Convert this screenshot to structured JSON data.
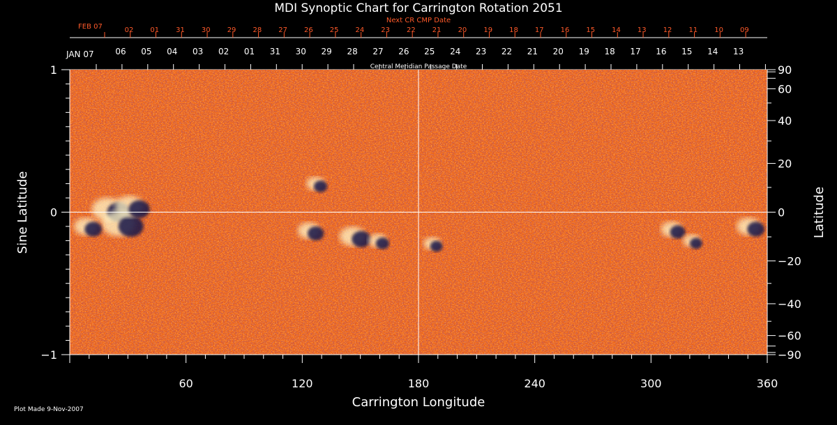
{
  "chart_data": {
    "type": "heatmap",
    "title": "MDI Synoptic Chart for Carrington Rotation 2051",
    "xlabel": "Carrington Longitude",
    "ylabel_left": "Sine Latitude",
    "ylabel_right": "Latitude",
    "xlim": [
      0,
      360
    ],
    "ylim": [
      -1,
      1
    ],
    "x_ticks": [
      60,
      120,
      180,
      240,
      300,
      360
    ],
    "y_left_ticks": [
      {
        "value": -1,
        "label": "−1"
      },
      {
        "value": 0,
        "label": "0"
      },
      {
        "value": 1,
        "label": "1"
      }
    ],
    "y_right_ticks": [
      90,
      60,
      40,
      20,
      0,
      -20,
      -40,
      -60,
      -90
    ],
    "y_right_labels": [
      "90",
      "60",
      "40",
      "20",
      "0",
      "−20",
      "−40",
      "−60",
      "−90"
    ],
    "crosshair": {
      "longitude": 180,
      "sine_latitude": 0
    },
    "color_scale": {
      "background": "#ef6418",
      "positive": "#fff6c8",
      "negative": "#14124a"
    },
    "active_regions": [
      {
        "longitude": 22,
        "sine_latitude": 0.02,
        "strength": 0.9
      },
      {
        "longitude": 28,
        "sine_latitude": -0.08,
        "strength": 1.0
      },
      {
        "longitude": 33,
        "sine_latitude": 0.04,
        "strength": 0.8
      },
      {
        "longitude": 10,
        "sine_latitude": -0.1,
        "strength": 0.6
      },
      {
        "longitude": 128,
        "sine_latitude": 0.2,
        "strength": 0.4
      },
      {
        "longitude": 125,
        "sine_latitude": -0.13,
        "strength": 0.55
      },
      {
        "longitude": 148,
        "sine_latitude": -0.17,
        "strength": 0.7
      },
      {
        "longitude": 160,
        "sine_latitude": -0.2,
        "strength": 0.4
      },
      {
        "longitude": 188,
        "sine_latitude": -0.22,
        "strength": 0.35
      },
      {
        "longitude": 312,
        "sine_latitude": -0.12,
        "strength": 0.5
      },
      {
        "longitude": 322,
        "sine_latitude": -0.2,
        "strength": 0.35
      },
      {
        "longitude": 352,
        "sine_latitude": -0.1,
        "strength": 0.6
      }
    ]
  },
  "cmp_axis": {
    "title": "Central Meridian Passage Date",
    "start_label": "JAN 07",
    "dates": [
      "06",
      "05",
      "04",
      "03",
      "02",
      "01",
      "31",
      "30",
      "29",
      "28",
      "27",
      "26",
      "25",
      "24",
      "23",
      "22",
      "21",
      "20",
      "19",
      "18",
      "17",
      "16",
      "15",
      "14",
      "13"
    ]
  },
  "next_cr_axis": {
    "title": "Next CR CMP Date",
    "start_label": "FEB 07",
    "dates": [
      "02",
      "01",
      "31",
      "30",
      "29",
      "28",
      "27",
      "26",
      "25",
      "24",
      "23",
      "22",
      "21",
      "20",
      "19",
      "18",
      "17",
      "16",
      "15",
      "14",
      "13",
      "12",
      "11",
      "10",
      "09"
    ]
  },
  "footer": {
    "plot_made": "Plot Made  9-Nov-2007"
  }
}
